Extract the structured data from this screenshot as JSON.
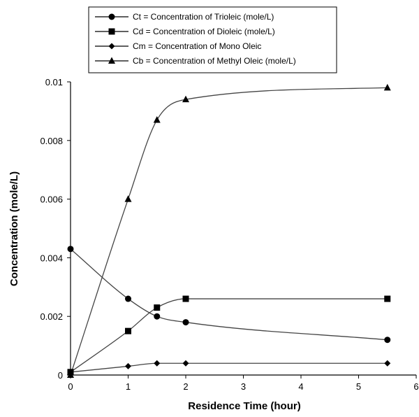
{
  "chart_data": {
    "type": "line",
    "xlabel": "Residence Time (hour)",
    "ylabel": "Concentration (mole/L)",
    "xlim": [
      0,
      6
    ],
    "ylim": [
      0,
      0.01
    ],
    "xticks": [
      "0",
      "1",
      "2",
      "3",
      "4",
      "5",
      "6"
    ],
    "yticks": [
      "0",
      "0.002",
      "0.004",
      "0.006",
      "0.008",
      "0.01"
    ],
    "grid": false,
    "legend_position": "top-center",
    "series": [
      {
        "name": "Ct = Concentration of Trioleic (mole/L)",
        "marker": "circle",
        "x": [
          0,
          1,
          1.5,
          2,
          5.5
        ],
        "y": [
          0.0043,
          0.0026,
          0.002,
          0.0018,
          0.0012
        ]
      },
      {
        "name": "Cd = Concentration of Dioleic (mole/L)",
        "marker": "square",
        "x": [
          0,
          1,
          1.5,
          2,
          5.5
        ],
        "y": [
          0.0001,
          0.0015,
          0.0023,
          0.0026,
          0.0026
        ]
      },
      {
        "name": "Cm =  Concentration of Mono Oleic",
        "marker": "diamond",
        "x": [
          0,
          1,
          1.5,
          2,
          5.5
        ],
        "y": [
          0.0001,
          0.0003,
          0.0004,
          0.0004,
          0.0004
        ]
      },
      {
        "name": "Cb = Concentration of Methyl Oleic (mole/L)",
        "marker": "triangle",
        "x": [
          0,
          1,
          1.5,
          2,
          5.5
        ],
        "y": [
          0,
          0.006,
          0.0087,
          0.0094,
          0.0098
        ]
      }
    ]
  }
}
